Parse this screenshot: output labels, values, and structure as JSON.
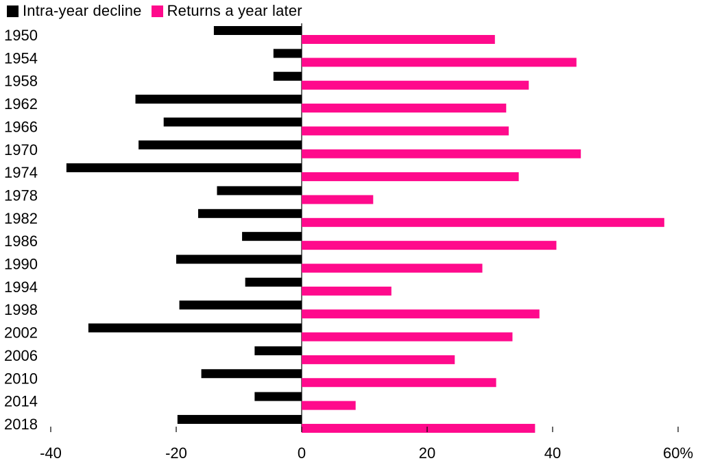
{
  "chart_data": {
    "type": "bar",
    "orientation": "horizontal",
    "categories": [
      "1950",
      "1954",
      "1958",
      "1962",
      "1966",
      "1970",
      "1974",
      "1978",
      "1982",
      "1986",
      "1990",
      "1994",
      "1998",
      "2002",
      "2006",
      "2010",
      "2014",
      "2018"
    ],
    "series": [
      {
        "name": "Intra-year decline",
        "color": "#000000",
        "values": [
          -14,
          -4.5,
          -4.5,
          -26.5,
          -22,
          -26,
          -37.5,
          -13.5,
          -16.5,
          -9.5,
          -20,
          -9,
          -19.5,
          -34,
          -7.5,
          -16,
          -7.5,
          -19.8
        ]
      },
      {
        "name": "Returns a year later",
        "color": "#ff0a8c",
        "values": [
          30.8,
          43.8,
          36.2,
          32.6,
          33,
          44.5,
          34.6,
          11.4,
          57.8,
          40.6,
          28.8,
          14.3,
          37.9,
          33.6,
          24.4,
          31,
          8.6,
          37.2
        ]
      }
    ],
    "x_ticks": [
      "-40",
      "-20",
      "0",
      "20",
      "40",
      "60%"
    ],
    "xlim": [
      -40,
      60
    ],
    "legend_position": "top-left"
  }
}
